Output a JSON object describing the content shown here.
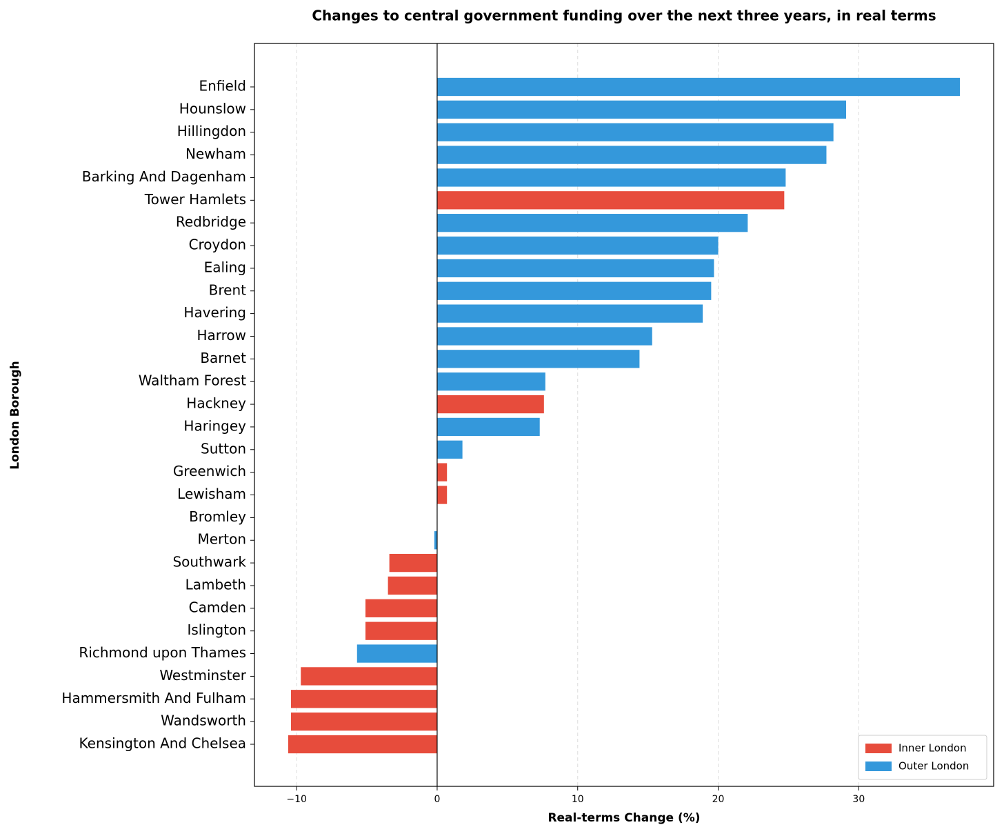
{
  "chart_data": {
    "type": "barh",
    "title": "Changes to central government funding over the next three years, in real terms",
    "x_label": "Real-terms Change (%)",
    "y_label": "London Borough",
    "categories": [
      "Enfield",
      "Hounslow",
      "Hillingdon",
      "Newham",
      "Barking And Dagenham",
      "Tower Hamlets",
      "Redbridge",
      "Croydon",
      "Ealing",
      "Brent",
      "Havering",
      "Harrow",
      "Barnet",
      "Waltham Forest",
      "Hackney",
      "Haringey",
      "Sutton",
      "Greenwich",
      "Lewisham",
      "Bromley",
      "Merton",
      "Southwark",
      "Lambeth",
      "Camden",
      "Islington",
      "Richmond upon Thames",
      "Westminster",
      "Hammersmith And Fulham",
      "Wandsworth",
      "Kensington And Chelsea"
    ],
    "series": [
      {
        "name": "Inner London",
        "color": "#e74c3c",
        "values": [
          null,
          null,
          null,
          null,
          null,
          24.7,
          null,
          null,
          null,
          null,
          null,
          null,
          null,
          null,
          7.6,
          null,
          null,
          0.7,
          0.7,
          null,
          null,
          -3.4,
          -3.5,
          -5.1,
          -5.1,
          null,
          -9.7,
          -10.4,
          -10.4,
          -10.6
        ]
      },
      {
        "name": "Outer London",
        "color": "#3498db",
        "values": [
          37.2,
          29.1,
          28.2,
          27.7,
          24.8,
          null,
          22.1,
          20.0,
          19.7,
          19.5,
          18.9,
          15.3,
          14.4,
          7.7,
          null,
          7.3,
          1.8,
          null,
          null,
          0,
          -0.2,
          null,
          null,
          null,
          null,
          -5.7,
          null,
          null,
          null,
          null
        ]
      }
    ],
    "xlim": [
      -13,
      39.6
    ],
    "xticks": [
      {
        "value": -10,
        "label": "−10"
      },
      0,
      10,
      20,
      30
    ],
    "grid": true,
    "legend": "lower right"
  }
}
